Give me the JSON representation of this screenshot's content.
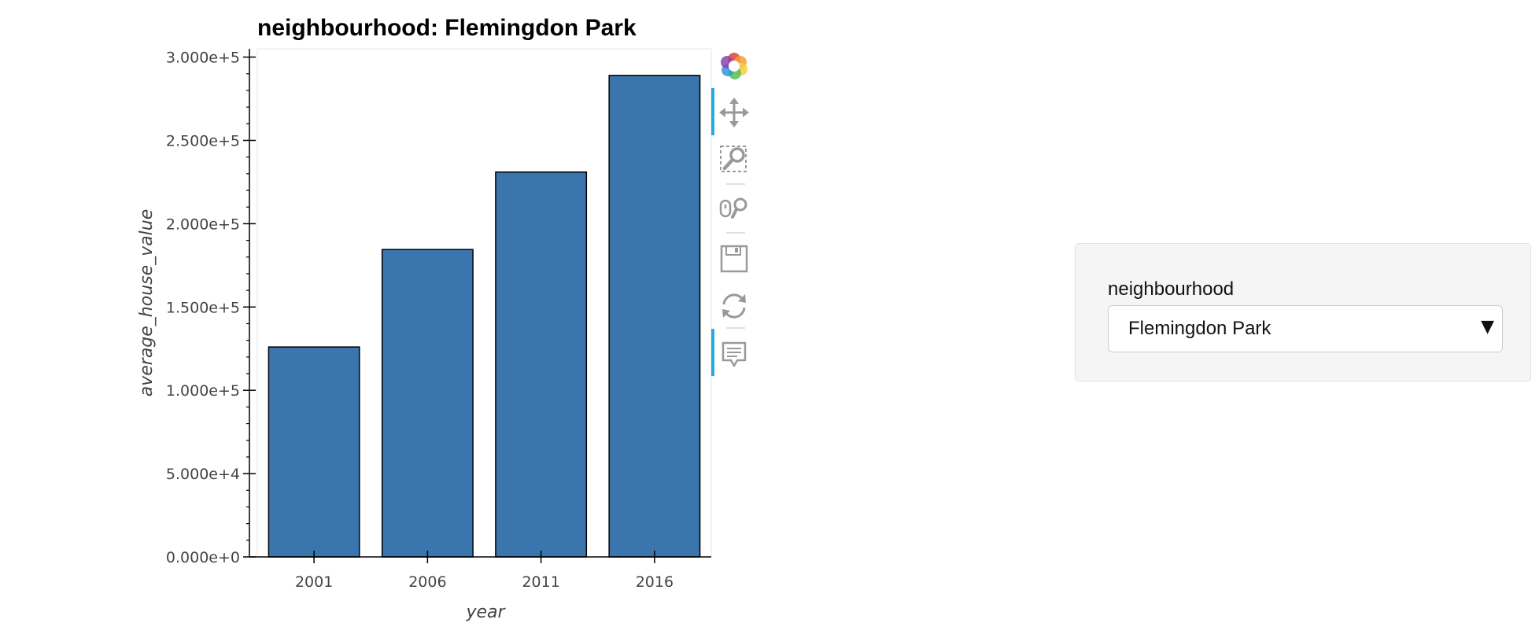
{
  "chart_data": {
    "type": "bar",
    "title": "neighbourhood: Flemingdon Park",
    "xlabel": "year",
    "ylabel": "average_house_value",
    "categories": [
      "2001",
      "2006",
      "2011",
      "2016"
    ],
    "values": [
      126000,
      184500,
      231000,
      289000
    ],
    "ylim": [
      0,
      305000
    ],
    "yticks": [
      0,
      50000,
      100000,
      150000,
      200000,
      250000,
      300000
    ],
    "ytick_labels": [
      "0.000e+0",
      "5.000e+4",
      "1.000e+5",
      "1.500e+5",
      "2.000e+5",
      "2.500e+5",
      "3.000e+5"
    ],
    "bar_color": "#3a75ad",
    "grid": false,
    "legend": "none"
  },
  "toolbar": {
    "tools": [
      {
        "name": "bokeh-logo-icon",
        "interactable": true
      },
      {
        "name": "pan-tool-icon",
        "interactable": true,
        "active": true
      },
      {
        "name": "box-zoom-tool-icon",
        "interactable": true
      },
      {
        "name": "wheel-zoom-tool-icon",
        "interactable": true
      },
      {
        "name": "save-tool-icon",
        "interactable": true
      },
      {
        "name": "reset-tool-icon",
        "interactable": true
      },
      {
        "name": "hover-tool-icon",
        "interactable": true,
        "active": true
      }
    ],
    "active_color": "#26aae1"
  },
  "widget": {
    "label": "neighbourhood",
    "selected": "Flemingdon Park"
  }
}
